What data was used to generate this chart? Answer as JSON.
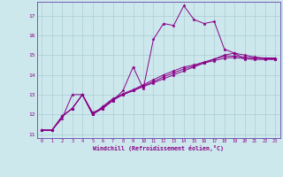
{
  "xlabel": "Windchill (Refroidissement éolien,°C)",
  "background_color": "#cde8ec",
  "grid_color": "#aacdd4",
  "line_color": "#880088",
  "spine_color": "#6644aa",
  "xlim": [
    -0.5,
    23.5
  ],
  "ylim": [
    10.8,
    17.7
  ],
  "yticks": [
    11,
    12,
    13,
    14,
    15,
    16,
    17
  ],
  "xticks": [
    0,
    1,
    2,
    3,
    4,
    5,
    6,
    7,
    8,
    9,
    10,
    11,
    12,
    13,
    14,
    15,
    16,
    17,
    18,
    19,
    20,
    21,
    22,
    23
  ],
  "series": [
    {
      "x": [
        0,
        1,
        2,
        3,
        4,
        5,
        6,
        7,
        8,
        9,
        10,
        11,
        12,
        13,
        14,
        15,
        16,
        17,
        18,
        19,
        20,
        21,
        22,
        23
      ],
      "y": [
        11.2,
        11.2,
        11.8,
        13.0,
        13.0,
        12.1,
        12.3,
        12.7,
        13.2,
        14.4,
        13.3,
        15.8,
        16.6,
        16.5,
        17.5,
        16.8,
        16.6,
        16.7,
        15.3,
        15.1,
        14.8,
        14.85,
        14.85,
        14.85
      ]
    },
    {
      "x": [
        0,
        1,
        2,
        3,
        4,
        5,
        6,
        7,
        8,
        9,
        10,
        11,
        12,
        13,
        14,
        15,
        16,
        17,
        18,
        19,
        20,
        21,
        22,
        23
      ],
      "y": [
        11.2,
        11.2,
        11.9,
        12.3,
        13.0,
        12.0,
        12.4,
        12.8,
        13.0,
        13.2,
        13.4,
        13.6,
        13.8,
        14.0,
        14.2,
        14.4,
        14.6,
        14.8,
        15.0,
        15.1,
        15.0,
        14.9,
        14.85,
        14.85
      ]
    },
    {
      "x": [
        0,
        1,
        2,
        3,
        4,
        5,
        6,
        7,
        8,
        9,
        10,
        11,
        12,
        13,
        14,
        15,
        16,
        17,
        18,
        19,
        20,
        21,
        22,
        23
      ],
      "y": [
        11.2,
        11.2,
        11.9,
        12.3,
        13.0,
        12.0,
        12.35,
        12.75,
        13.05,
        13.25,
        13.5,
        13.75,
        14.0,
        14.2,
        14.4,
        14.5,
        14.65,
        14.8,
        14.95,
        14.95,
        14.9,
        14.85,
        14.82,
        14.8
      ]
    },
    {
      "x": [
        0,
        1,
        2,
        3,
        4,
        5,
        6,
        7,
        8,
        9,
        10,
        11,
        12,
        13,
        14,
        15,
        16,
        17,
        18,
        19,
        20,
        21,
        22,
        23
      ],
      "y": [
        11.2,
        11.2,
        11.9,
        12.3,
        13.0,
        12.0,
        12.3,
        12.7,
        13.0,
        13.2,
        13.45,
        13.65,
        13.9,
        14.1,
        14.3,
        14.45,
        14.6,
        14.72,
        14.85,
        14.88,
        14.82,
        14.78,
        14.78,
        14.78
      ]
    }
  ]
}
